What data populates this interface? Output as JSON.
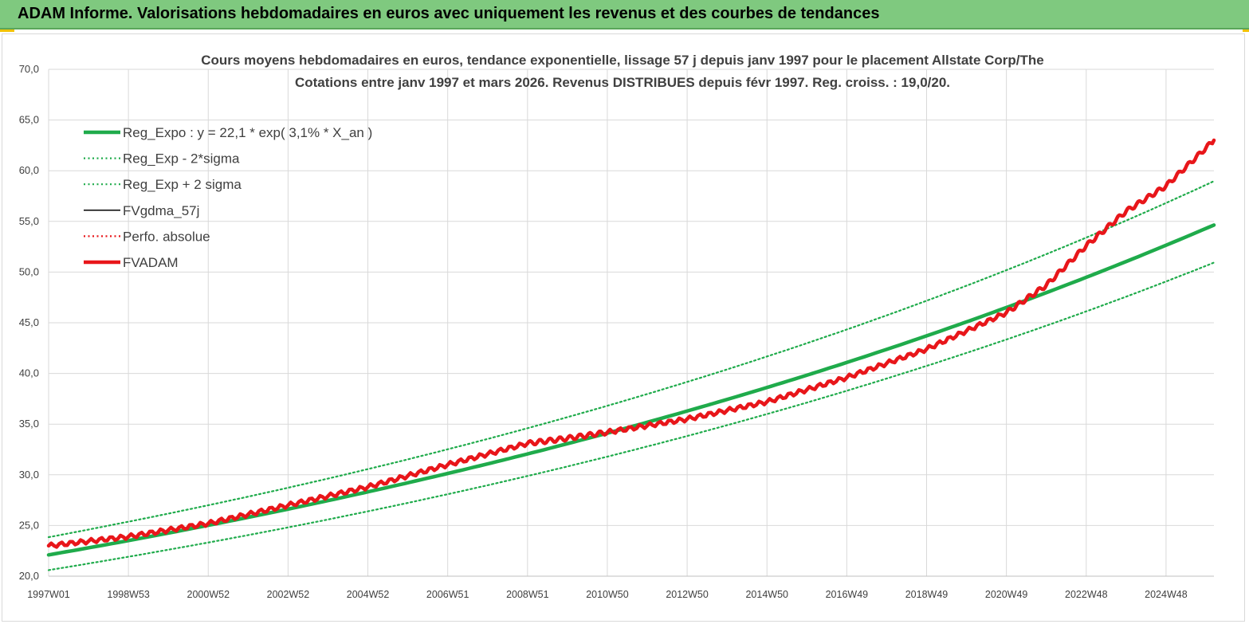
{
  "header": {
    "title": "ADAM Informe. Valorisations hebdomadaires en euros avec uniquement les revenus et des courbes de tendances"
  },
  "colors": {
    "header_bg": "#7fc97f",
    "accent": "#f2c200",
    "green": "#1fab4b",
    "red": "#e8161a",
    "black": "#000000",
    "grid": "#d9d9d9",
    "text": "#404040"
  },
  "chart_data": {
    "type": "line",
    "title": "Cours moyens hebdomadaires en euros, tendance exponentielle, lissage 57 j depuis janv 1997 pour le placement Allstate Corp/The",
    "subtitle": "Cotations entre janv 1997 et mars 2026. Revenus DISTRIBUES depuis févr 1997. Reg. croiss. : 19,0/20.",
    "xlabel": "",
    "ylabel": "",
    "ylim": [
      20,
      70
    ],
    "yticks": [
      "20,0",
      "25,0",
      "30,0",
      "35,0",
      "40,0",
      "45,0",
      "50,0",
      "55,0",
      "60,0",
      "65,0",
      "70,0"
    ],
    "xlim": [
      1997.0,
      2026.2
    ],
    "xticks": [
      {
        "label": "1997W01",
        "year": 1997.0
      },
      {
        "label": "1998W53",
        "year": 1999.0
      },
      {
        "label": "2000W52",
        "year": 2001.0
      },
      {
        "label": "2002W52",
        "year": 2003.0
      },
      {
        "label": "2004W52",
        "year": 2005.0
      },
      {
        "label": "2006W51",
        "year": 2007.0
      },
      {
        "label": "2008W51",
        "year": 2009.0
      },
      {
        "label": "2010W50",
        "year": 2011.0
      },
      {
        "label": "2012W50",
        "year": 2013.0
      },
      {
        "label": "2014W50",
        "year": 2015.0
      },
      {
        "label": "2016W49",
        "year": 2017.0
      },
      {
        "label": "2018W49",
        "year": 2019.0
      },
      {
        "label": "2020W49",
        "year": 2021.0
      },
      {
        "label": "2022W48",
        "year": 2023.0
      },
      {
        "label": "2024W48",
        "year": 2025.0
      }
    ],
    "grid": true,
    "legend_position": "top-left",
    "series": [
      {
        "name": "Reg_Expo : y = 22,1 * exp( 3,1% *  X_an )",
        "style": "solid-thick",
        "color": "#1fab4b",
        "x": [
          1997.0,
          2026.2
        ],
        "formula": {
          "a": 22.1,
          "rate": 0.031
        }
      },
      {
        "name": "Reg_Exp - 2*sigma",
        "style": "dotted",
        "color": "#1fab4b",
        "x": [
          1997.0,
          2026.2
        ],
        "formula": {
          "a": 20.6,
          "rate": 0.031
        }
      },
      {
        "name": "Reg_Exp + 2 sigma",
        "style": "dotted",
        "color": "#1fab4b",
        "x": [
          1997.0,
          2026.2
        ],
        "formula": {
          "a": 23.85,
          "rate": 0.031
        }
      },
      {
        "name": "FVgdma_57j",
        "style": "solid",
        "color": "#000000",
        "x": [
          1997.0,
          1999.0,
          2001.0,
          2003.0,
          2005.0,
          2007.0,
          2009.0,
          2010.0,
          2011.0,
          2013.0,
          2015.0,
          2017.0,
          2019.0,
          2021.0,
          2022.0,
          2023.0,
          2024.0,
          2025.0,
          2026.2
        ],
        "y": [
          23.0,
          23.9,
          25.2,
          27.0,
          28.8,
          31.0,
          33.1,
          33.6,
          34.2,
          35.5,
          37.2,
          39.6,
          42.4,
          46.0,
          48.7,
          52.6,
          56.0,
          58.5,
          63.0
        ]
      },
      {
        "name": "Perfo. absolue",
        "style": "dotted",
        "color": "#e8161a",
        "x": [
          1997.0,
          1999.0,
          2001.0,
          2003.0,
          2005.0,
          2007.0,
          2009.0,
          2010.0,
          2011.0,
          2013.0,
          2015.0,
          2017.0,
          2019.0,
          2021.0,
          2022.0,
          2023.0,
          2024.0,
          2025.0,
          2026.2
        ],
        "y": [
          23.0,
          23.9,
          25.2,
          27.0,
          28.8,
          31.0,
          33.1,
          33.6,
          34.2,
          35.5,
          37.2,
          39.6,
          42.4,
          46.0,
          48.7,
          52.6,
          56.0,
          58.5,
          63.0
        ]
      },
      {
        "name": "FVADAM",
        "style": "solid-thick",
        "color": "#e8161a",
        "x": [
          1997.0,
          1999.0,
          2001.0,
          2003.0,
          2005.0,
          2007.0,
          2009.0,
          2010.0,
          2011.0,
          2013.0,
          2015.0,
          2017.0,
          2019.0,
          2021.0,
          2022.0,
          2023.0,
          2024.0,
          2025.0,
          2026.2
        ],
        "y": [
          23.0,
          23.9,
          25.2,
          27.0,
          28.8,
          31.0,
          33.1,
          33.6,
          34.2,
          35.5,
          37.2,
          39.6,
          42.4,
          46.0,
          48.7,
          52.6,
          56.0,
          58.5,
          63.0
        ]
      }
    ]
  }
}
